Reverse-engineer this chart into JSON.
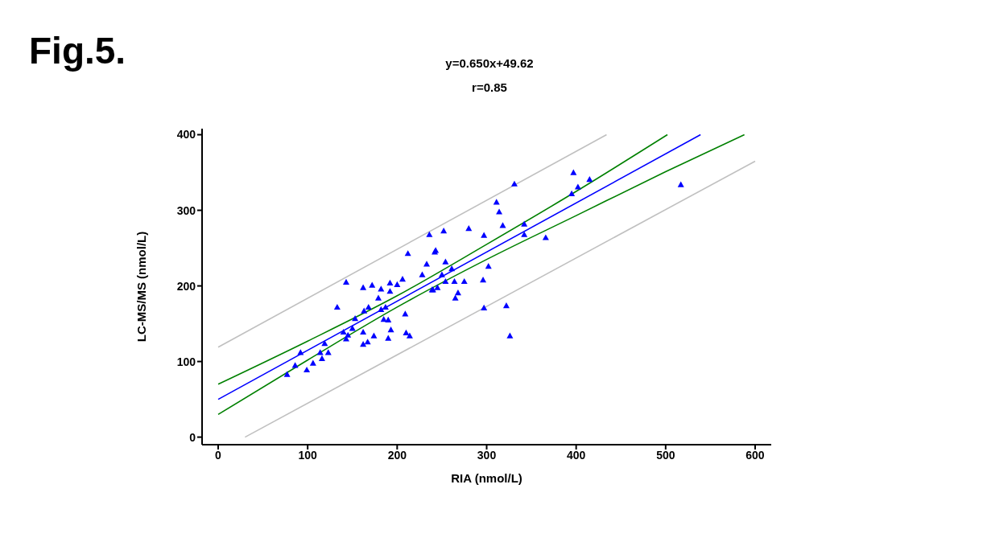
{
  "chart_data": {
    "type": "scatter",
    "title": "y=0.650x+49.62",
    "subtitle": "r=0.85",
    "annotations": [
      "Fig.5."
    ],
    "xlabel": "RIA (nmol/L)",
    "ylabel": "LC-MS/MS (nmol/L)",
    "xlim": [
      -18,
      618
    ],
    "ylim": [
      -10,
      408
    ],
    "xticks": [
      0,
      100,
      200,
      300,
      400,
      500,
      600
    ],
    "yticks": [
      0,
      100,
      200,
      300,
      400
    ],
    "grid": false,
    "legend": false,
    "marker": "triangle",
    "series": [
      {
        "color": "#0000ff",
        "x": [
          77,
          86,
          92,
          99,
          106,
          114,
          116,
          123,
          119,
          133,
          143,
          140,
          143,
          145,
          150,
          153,
          162,
          162,
          162,
          167,
          163,
          168,
          172,
          174,
          179,
          182,
          182,
          185,
          187,
          190,
          190,
          192,
          193,
          192,
          200,
          206,
          209,
          210,
          214,
          212,
          228,
          233,
          236,
          242,
          240,
          243,
          239,
          245,
          250,
          252,
          254,
          254,
          261,
          264,
          265,
          268,
          275,
          280,
          296,
          297,
          297,
          302,
          311,
          314,
          318,
          322,
          326,
          331,
          342,
          342,
          366,
          395,
          397,
          402,
          415,
          517
        ],
        "values": [
          83,
          95,
          112,
          89,
          98,
          112,
          104,
          112,
          124,
          172,
          205,
          139,
          130,
          135,
          144,
          157,
          198,
          139,
          123,
          126,
          167,
          172,
          201,
          134,
          184,
          196,
          169,
          156,
          172,
          155,
          131,
          204,
          142,
          193,
          202,
          209,
          163,
          138,
          134,
          243,
          215,
          229,
          268,
          245,
          195,
          247,
          195,
          198,
          215,
          273,
          206,
          232,
          223,
          206,
          184,
          191,
          206,
          276,
          208,
          267,
          171,
          226,
          311,
          298,
          280,
          174,
          134,
          335,
          282,
          268,
          264,
          322,
          350,
          331,
          341,
          334
        ]
      },
      {
        "type": "line",
        "color": "#0000ff",
        "marker": "none",
        "x": [
          0,
          539
        ],
        "values": [
          50,
          400
        ]
      },
      {
        "type": "line",
        "color": "#008000",
        "marker": "none",
        "x": [
          0,
          100,
          200,
          300,
          400,
          502
        ],
        "values": [
          70,
          127,
          187,
          255,
          325,
          400
        ]
      },
      {
        "type": "line",
        "color": "#008000",
        "marker": "none",
        "x": [
          0,
          100,
          200,
          300,
          400,
          500,
          588
        ],
        "values": [
          30,
          102,
          172,
          235,
          293,
          351,
          400
        ]
      },
      {
        "type": "line",
        "color": "#c0c0c0",
        "marker": "none",
        "x": [
          0,
          434
        ],
        "values": [
          119,
          400
        ]
      },
      {
        "type": "line",
        "color": "#c0c0c0",
        "marker": "none",
        "x": [
          30,
          600
        ],
        "values": [
          0,
          365
        ]
      }
    ]
  }
}
